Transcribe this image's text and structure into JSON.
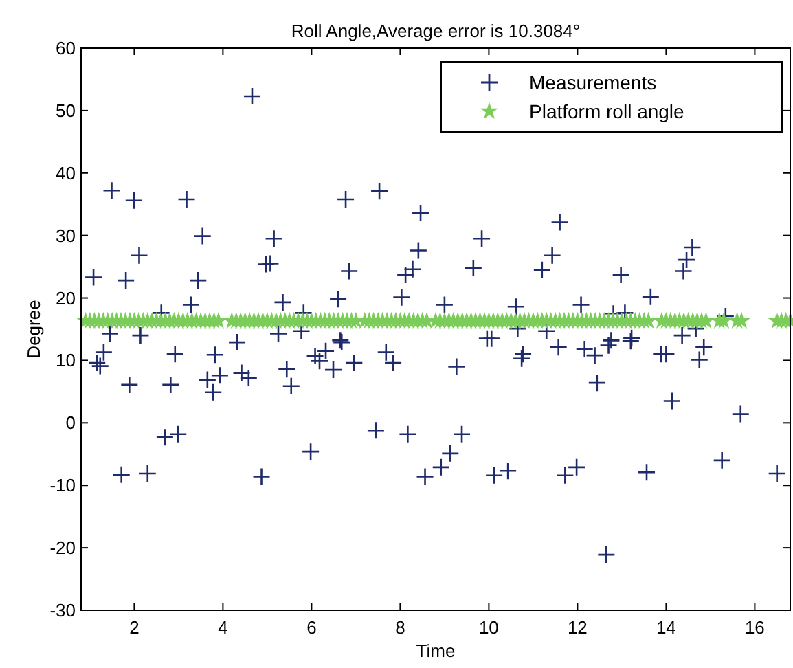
{
  "chart_data": {
    "type": "scatter",
    "title": "Roll Angle,Average error is 10.3084°",
    "xlabel": "Time",
    "ylabel": "Degree",
    "xlim": [
      0.8,
      16.8
    ],
    "ylim": [
      -30,
      60
    ],
    "xticks": [
      2,
      4,
      6,
      8,
      10,
      12,
      14,
      16
    ],
    "yticks": [
      -30,
      -20,
      -10,
      0,
      10,
      20,
      30,
      40,
      50,
      60
    ],
    "grid": false,
    "legend": "top right",
    "series": [
      {
        "name": "Measurements",
        "color": "#1f2a6b",
        "marker": "cross",
        "x": [
          1.08,
          1.49,
          1.99,
          1.81,
          2.11,
          1.45,
          2.14,
          2.61,
          3.18,
          3.54,
          3.44,
          3.28,
          4.66,
          5.15,
          4.97,
          5.07,
          5.35,
          5.25,
          5.82,
          5.77,
          6.6,
          6.77,
          6.85,
          6.65,
          7.53,
          8.03,
          8.12,
          8.28,
          8.41,
          8.46,
          9.0,
          9.84,
          9.65,
          11.6,
          11.43,
          11.2,
          10.61,
          12.08,
          12.98,
          12.81,
          13.07,
          13.65,
          14.59,
          14.46,
          14.39,
          15.34,
          10.65,
          11.3,
          12.76,
          13.22,
          14.36,
          14.67,
          9.96,
          10.06,
          9.27,
          10.77,
          10.74,
          11.57,
          12.16,
          12.39,
          12.7,
          13.2,
          13.89,
          14.0,
          14.85,
          14.75,
          12.44,
          14.13,
          15.68,
          9.39,
          9.13,
          8.92,
          8.56,
          10.12,
          10.43,
          11.72,
          11.98,
          13.56,
          15.26,
          16.5,
          12.65,
          1.16,
          1.23,
          1.31,
          1.89,
          2.92,
          2.82,
          2.69,
          2.99,
          1.71,
          2.3,
          3.82,
          4.32,
          3.65,
          3.78,
          3.93,
          4.42,
          4.58,
          4.87,
          5.44,
          5.54,
          6.08,
          6.18,
          6.32,
          6.68,
          6.49,
          6.96,
          5.98,
          7.45,
          8.17,
          7.68,
          7.84
        ],
        "values": [
          23.3,
          37.2,
          35.6,
          22.8,
          26.8,
          14.3,
          14,
          17.6,
          35.8,
          29.9,
          22.8,
          18.9,
          52.3,
          29.5,
          25.4,
          25.5,
          19.3,
          14.3,
          17.6,
          14.7,
          19.8,
          35.8,
          24.3,
          13.2,
          37.1,
          20.1,
          23.7,
          24.6,
          27.6,
          33.6,
          18.9,
          29.5,
          24.8,
          32.1,
          26.8,
          24.5,
          18.6,
          18.9,
          23.7,
          17.5,
          17.6,
          20.2,
          28.1,
          26.1,
          24.3,
          17.1,
          15.1,
          14.7,
          13.2,
          13.6,
          14,
          15.1,
          13.5,
          13.5,
          9.0,
          11.0,
          10.3,
          12.1,
          11.8,
          10.8,
          12.4,
          13.1,
          11.0,
          11.0,
          12.1,
          10.1,
          6.4,
          3.5,
          1.4,
          -1.8,
          -4.9,
          -7.1,
          -8.6,
          -8.4,
          -7.7,
          -8.4,
          -7.1,
          -7.9,
          -6.0,
          -8.1,
          -21.1,
          9.6,
          9.1,
          11.3,
          6.1,
          11.0,
          6.1,
          -2.3,
          -1.8,
          -8.3,
          -8.1,
          10.9,
          12.9,
          6.9,
          4.9,
          7.6,
          8.0,
          7.2,
          -8.6,
          8.6,
          5.9,
          10.7,
          9.9,
          11.5,
          12.9,
          8.5,
          9.6,
          -4.6,
          -1.2,
          -1.8,
          11.3,
          9.6
        ]
      },
      {
        "name": "Platform roll angle",
        "color": "#7ccc5a",
        "marker": "star",
        "x": [
          0.9,
          1.0,
          1.1,
          1.2,
          1.3,
          1.4,
          1.5,
          1.6,
          1.7,
          1.8,
          1.9,
          2.0,
          2.1,
          2.2,
          2.3,
          2.4,
          2.5,
          2.6,
          2.7,
          2.8,
          2.9,
          3.0,
          3.1,
          3.2,
          3.3,
          3.4,
          3.5,
          3.6,
          3.7,
          3.8,
          3.9,
          4.2,
          4.3,
          4.4,
          4.5,
          4.6,
          4.7,
          4.8,
          4.9,
          5.0,
          5.1,
          5.2,
          5.3,
          5.4,
          5.5,
          5.6,
          5.7,
          5.8,
          5.9,
          6.0,
          6.1,
          6.2,
          6.3,
          6.4,
          6.5,
          6.6,
          6.7,
          6.8,
          6.9,
          7.0,
          7.2,
          7.3,
          7.4,
          7.5,
          7.6,
          7.7,
          7.8,
          7.9,
          8.0,
          8.1,
          8.2,
          8.3,
          8.4,
          8.5,
          8.6,
          8.8,
          8.9,
          9.0,
          9.1,
          9.2,
          9.3,
          9.4,
          9.5,
          9.6,
          9.7,
          9.8,
          9.9,
          10.0,
          10.1,
          10.2,
          10.3,
          10.4,
          10.5,
          10.6,
          10.7,
          10.8,
          10.9,
          11.0,
          11.1,
          11.2,
          11.3,
          11.4,
          11.5,
          11.6,
          11.7,
          11.8,
          11.9,
          12.0,
          12.1,
          12.2,
          12.3,
          12.4,
          12.5,
          12.6,
          12.7,
          12.8,
          12.9,
          13.0,
          13.1,
          13.2,
          13.3,
          13.4,
          13.5,
          13.6,
          13.9,
          14.0,
          14.1,
          14.2,
          14.3,
          14.4,
          14.5,
          14.6,
          14.7,
          14.8,
          14.9,
          15.2,
          15.3,
          15.6,
          15.7,
          16.5,
          16.6,
          16.7,
          16.8
        ],
        "values": [
          16.3,
          16.3,
          16.3,
          16.3,
          16.3,
          16.3,
          16.3,
          16.3,
          16.3,
          16.3,
          16.3,
          16.3,
          16.3,
          16.3,
          16.3,
          16.3,
          16.3,
          16.3,
          16.3,
          16.3,
          16.3,
          16.3,
          16.3,
          16.3,
          16.3,
          16.3,
          16.3,
          16.3,
          16.3,
          16.3,
          16.3,
          16.3,
          16.3,
          16.3,
          16.3,
          16.3,
          16.3,
          16.3,
          16.3,
          16.3,
          16.3,
          16.3,
          16.3,
          16.3,
          16.3,
          16.3,
          16.3,
          16.3,
          16.3,
          16.3,
          16.3,
          16.3,
          16.3,
          16.3,
          16.3,
          16.3,
          16.3,
          16.3,
          16.3,
          16.3,
          16.3,
          16.3,
          16.3,
          16.3,
          16.3,
          16.3,
          16.3,
          16.3,
          16.3,
          16.3,
          16.3,
          16.3,
          16.3,
          16.3,
          16.3,
          16.3,
          16.3,
          16.3,
          16.3,
          16.3,
          16.3,
          16.3,
          16.3,
          16.3,
          16.3,
          16.3,
          16.3,
          16.3,
          16.3,
          16.3,
          16.3,
          16.3,
          16.3,
          16.3,
          16.3,
          16.3,
          16.3,
          16.3,
          16.3,
          16.3,
          16.3,
          16.3,
          16.3,
          16.3,
          16.3,
          16.3,
          16.3,
          16.3,
          16.3,
          16.3,
          16.3,
          16.3,
          16.3,
          16.3,
          16.3,
          16.3,
          16.3,
          16.3,
          16.3,
          16.3,
          16.3,
          16.3,
          16.3,
          16.3,
          16.3,
          16.3,
          16.3,
          16.3,
          16.3,
          16.3,
          16.3,
          16.3,
          16.3,
          16.3,
          16.3,
          16.3,
          16.3,
          16.3,
          16.3,
          16.3,
          16.3,
          16.3,
          16.3
        ]
      }
    ]
  }
}
